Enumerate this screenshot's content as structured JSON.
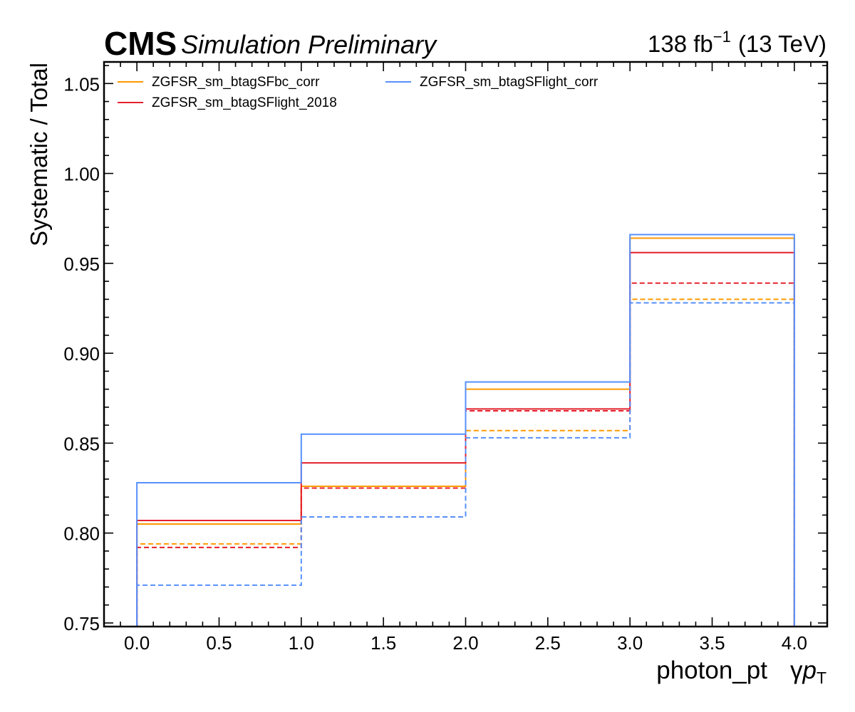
{
  "header": {
    "experiment": "CMS",
    "status": "Simulation Preliminary",
    "lumi_value": "138 fb",
    "lumi_exponent": "−1",
    "energy": "(13 TeV)"
  },
  "chart_data": {
    "type": "line",
    "drawstyle": "steps",
    "xlabel_main": "photon_pt",
    "xlabel_symbol": "γ",
    "xlabel_var": "p",
    "xlabel_sub": "T",
    "ylabel": "Systematic / Total",
    "xlim": [
      -0.2,
      4.2
    ],
    "ylim": [
      0.748,
      1.062
    ],
    "xticks": [
      0.0,
      0.5,
      1.0,
      1.5,
      2.0,
      2.5,
      3.0,
      3.5,
      4.0
    ],
    "xtick_labels": [
      "0.0",
      "0.5",
      "1.0",
      "1.5",
      "2.0",
      "2.5",
      "3.0",
      "3.5",
      "4.0"
    ],
    "yticks": [
      0.75,
      0.8,
      0.85,
      0.9,
      0.95,
      1.0,
      1.05
    ],
    "ytick_labels": [
      "0.75",
      "0.80",
      "0.85",
      "0.90",
      "0.95",
      "1.00",
      "1.05"
    ],
    "bin_edges": [
      0,
      1,
      2,
      3,
      4
    ],
    "legend_position": "top-left",
    "legend_columns": 2,
    "series": [
      {
        "name": "ZGFSR_sm_btagSFbc_corr",
        "color": "#ff9a00",
        "up": [
          0.805,
          0.826,
          0.88,
          0.964
        ],
        "down": [
          0.794,
          0.826,
          0.857,
          0.93
        ]
      },
      {
        "name": "ZGFSR_sm_btagSFlight_2018",
        "color": "#e4202c",
        "up": [
          0.807,
          0.839,
          0.869,
          0.956
        ],
        "down": [
          0.792,
          0.825,
          0.868,
          0.939
        ]
      },
      {
        "name": "ZGFSR_sm_btagSFlight_corr",
        "color": "#5790fc",
        "up": [
          0.828,
          0.855,
          0.884,
          0.966
        ],
        "down": [
          0.771,
          0.809,
          0.853,
          0.928
        ]
      }
    ]
  }
}
